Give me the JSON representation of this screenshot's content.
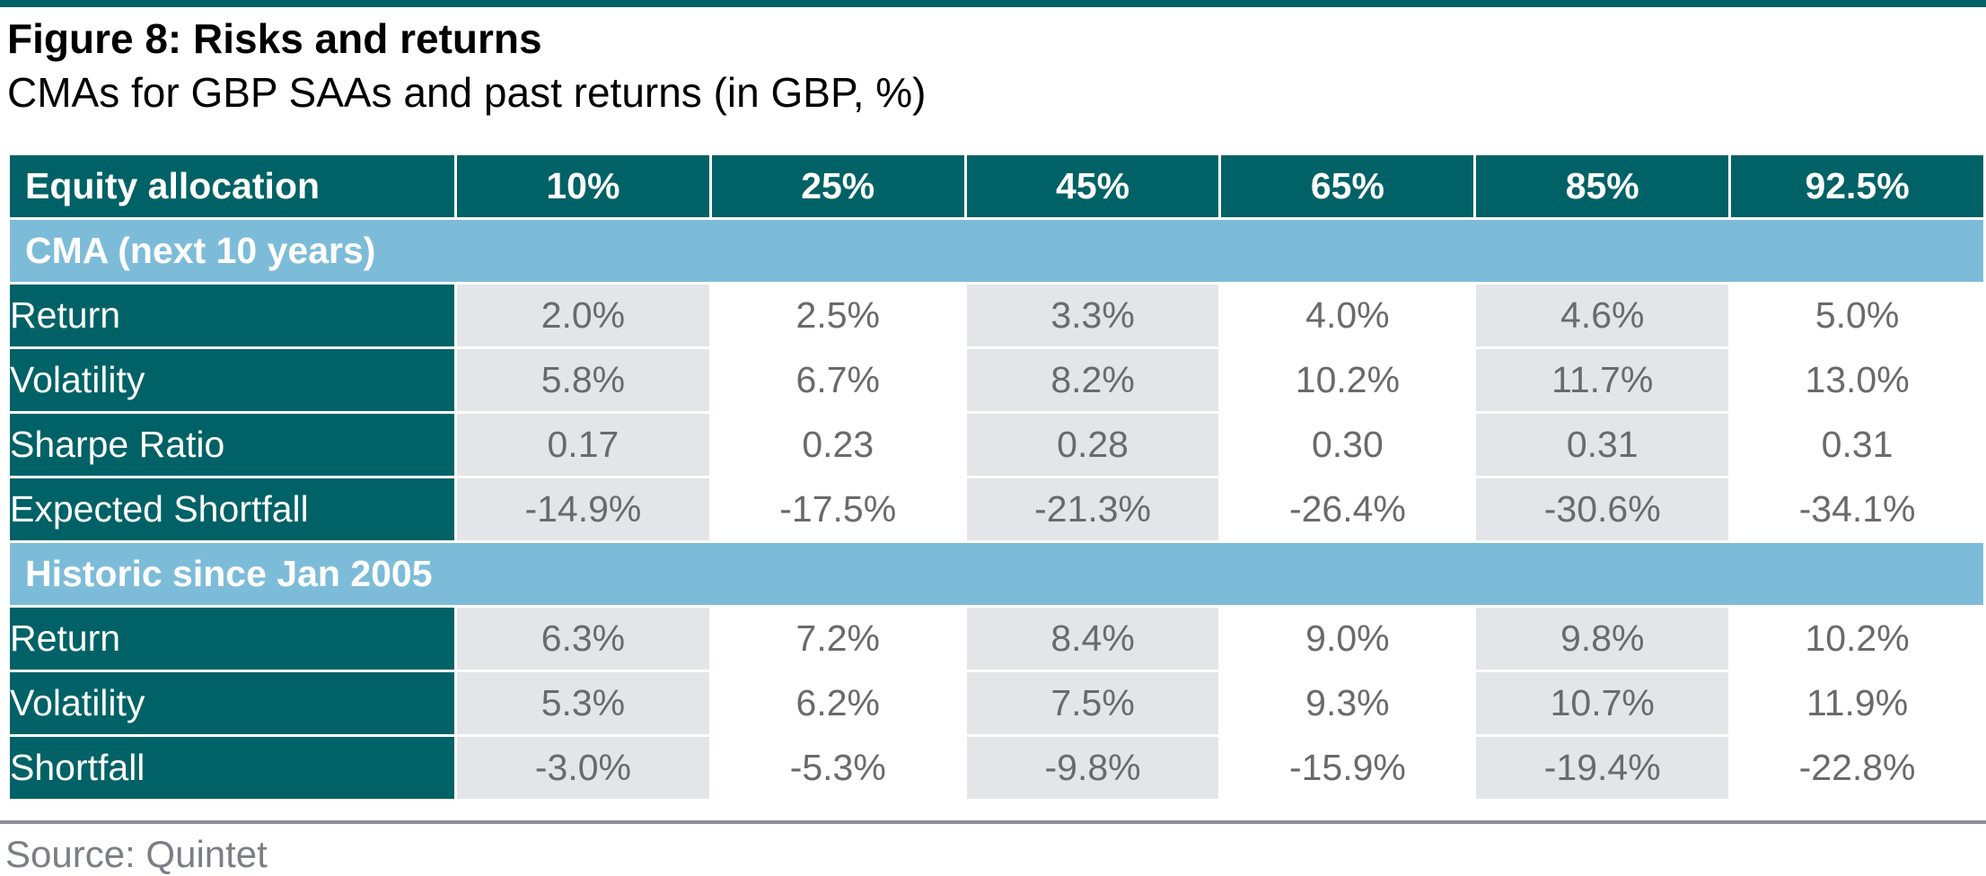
{
  "colors": {
    "dark_teal": "#006266",
    "light_blue": "#7dbcd9",
    "value_text": "#6a6a6a",
    "shade_cell": "#e3e5e8",
    "rule_gray": "#8a8f96",
    "source_text": "#7b7f85"
  },
  "title": "Figure 8: Risks and returns",
  "subtitle": "CMAs for GBP SAAs and past returns (in GBP, %)",
  "source": "Source: Quintet",
  "chart_data": {
    "type": "table",
    "columns": [
      "Equity allocation",
      "10%",
      "25%",
      "45%",
      "65%",
      "85%",
      "92.5%"
    ],
    "sections": [
      {
        "label": "CMA (next 10 years)",
        "rows": [
          {
            "label": "Return",
            "values": [
              "2.0%",
              "2.5%",
              "3.3%",
              "4.0%",
              "4.6%",
              "5.0%"
            ]
          },
          {
            "label": "Volatility",
            "values": [
              "5.8%",
              "6.7%",
              "8.2%",
              "10.2%",
              "11.7%",
              "13.0%"
            ]
          },
          {
            "label": "Sharpe Ratio",
            "values": [
              "0.17",
              "0.23",
              "0.28",
              "0.30",
              "0.31",
              "0.31"
            ]
          },
          {
            "label": "Expected Shortfall",
            "values": [
              "-14.9%",
              "-17.5%",
              "-21.3%",
              "-26.4%",
              "-30.6%",
              "-34.1%"
            ]
          }
        ]
      },
      {
        "label": "Historic since Jan 2005",
        "rows": [
          {
            "label": "Return",
            "values": [
              "6.3%",
              "7.2%",
              "8.4%",
              "9.0%",
              "9.8%",
              "10.2%"
            ]
          },
          {
            "label": "Volatility",
            "values": [
              "5.3%",
              "6.2%",
              "7.5%",
              "9.3%",
              "10.7%",
              "11.9%"
            ]
          },
          {
            "label": "Shortfall",
            "values": [
              "-3.0%",
              "-5.3%",
              "-9.8%",
              "-15.9%",
              "-19.4%",
              "-22.8%"
            ]
          }
        ]
      }
    ]
  }
}
